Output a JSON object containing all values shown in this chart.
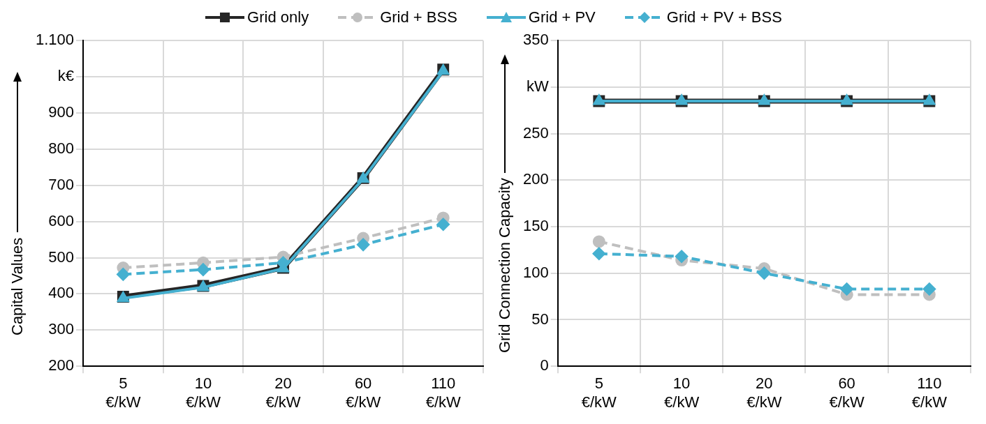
{
  "chart_data": [
    {
      "type": "line",
      "ylabel": "Capital Values",
      "categories": [
        "5 €/kW",
        "10 €/kW",
        "20 €/kW",
        "60 €/kW",
        "110 €/kW"
      ],
      "ylim": [
        200,
        1100
      ],
      "yticks": [
        200,
        300,
        400,
        500,
        600,
        700,
        800,
        900,
        {
          "value": 1000,
          "label": "k€"
        },
        {
          "value": 1100,
          "label": "1.100"
        }
      ],
      "grid": true,
      "legend": "top",
      "series": [
        {
          "name": "Grid only",
          "color": "#262626",
          "marker": "square",
          "line_style": "solid",
          "values": [
            392,
            422,
            472,
            720,
            1020
          ]
        },
        {
          "name": "Grid + BSS",
          "color": "#bfbfbf",
          "marker": "circle",
          "line_style": "dashed",
          "values": [
            472,
            486,
            502,
            554,
            610
          ]
        },
        {
          "name": "Grid + PV",
          "color": "#45b0d0",
          "marker": "triangle",
          "line_style": "solid",
          "values": [
            388,
            418,
            470,
            718,
            1016
          ]
        },
        {
          "name": "Grid + PV + BSS",
          "color": "#45b0d0",
          "marker": "diamond",
          "line_style": "dashed",
          "values": [
            454,
            467,
            486,
            536,
            592
          ]
        }
      ]
    },
    {
      "type": "line",
      "ylabel": "Grid Connection Capacity",
      "categories": [
        "5 €/kW",
        "10 €/kW",
        "20 €/kW",
        "60 €/kW",
        "110 €/kW"
      ],
      "ylim": [
        0,
        350
      ],
      "yticks": [
        0,
        50,
        100,
        150,
        200,
        250,
        {
          "value": 300,
          "label": "kW"
        },
        350
      ],
      "grid": true,
      "series": [
        {
          "color": "#262626",
          "marker": "square",
          "line_style": "solid",
          "values": [
            285,
            285,
            285,
            285,
            285
          ]
        },
        {
          "color": "#bfbfbf",
          "marker": "circle",
          "line_style": "dashed",
          "values": [
            134,
            114,
            105,
            77,
            77
          ]
        },
        {
          "color": "#45b0d0",
          "marker": "triangle",
          "line_style": "solid",
          "values": [
            285,
            285,
            285,
            285,
            285
          ]
        },
        {
          "color": "#45b0d0",
          "marker": "diamond",
          "line_style": "dashed",
          "values": [
            121,
            118,
            100,
            83,
            83
          ]
        }
      ]
    }
  ]
}
